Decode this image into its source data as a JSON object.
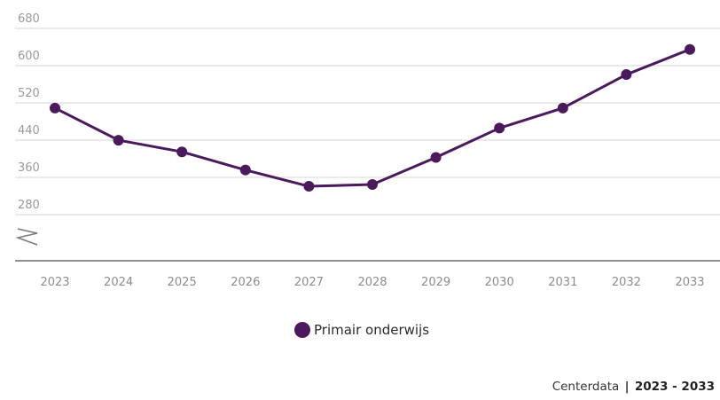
{
  "chart_data": {
    "type": "line",
    "x": [
      "2023",
      "2024",
      "2025",
      "2026",
      "2027",
      "2028",
      "2029",
      "2030",
      "2031",
      "2032",
      "2033"
    ],
    "y_ticks": [
      "680",
      "600",
      "520",
      "440",
      "360",
      "280"
    ],
    "ylim": [
      280,
      680
    ],
    "y_axis_broken": true,
    "grid": true,
    "legend_position": "bottom-center",
    "series": [
      {
        "name": "Primair onderwijs",
        "values": [
          486,
          417,
          392,
          353,
          318,
          322,
          380,
          443,
          486,
          558,
          612
        ],
        "color": "#4a1a5c"
      }
    ]
  },
  "credit": {
    "source": "Centerdata",
    "separator": "|",
    "range": "2023 - 2033"
  },
  "colors": {
    "series": "#4a1a5c",
    "grid": "#e3e3e3",
    "axis": "#6a6a6a"
  }
}
